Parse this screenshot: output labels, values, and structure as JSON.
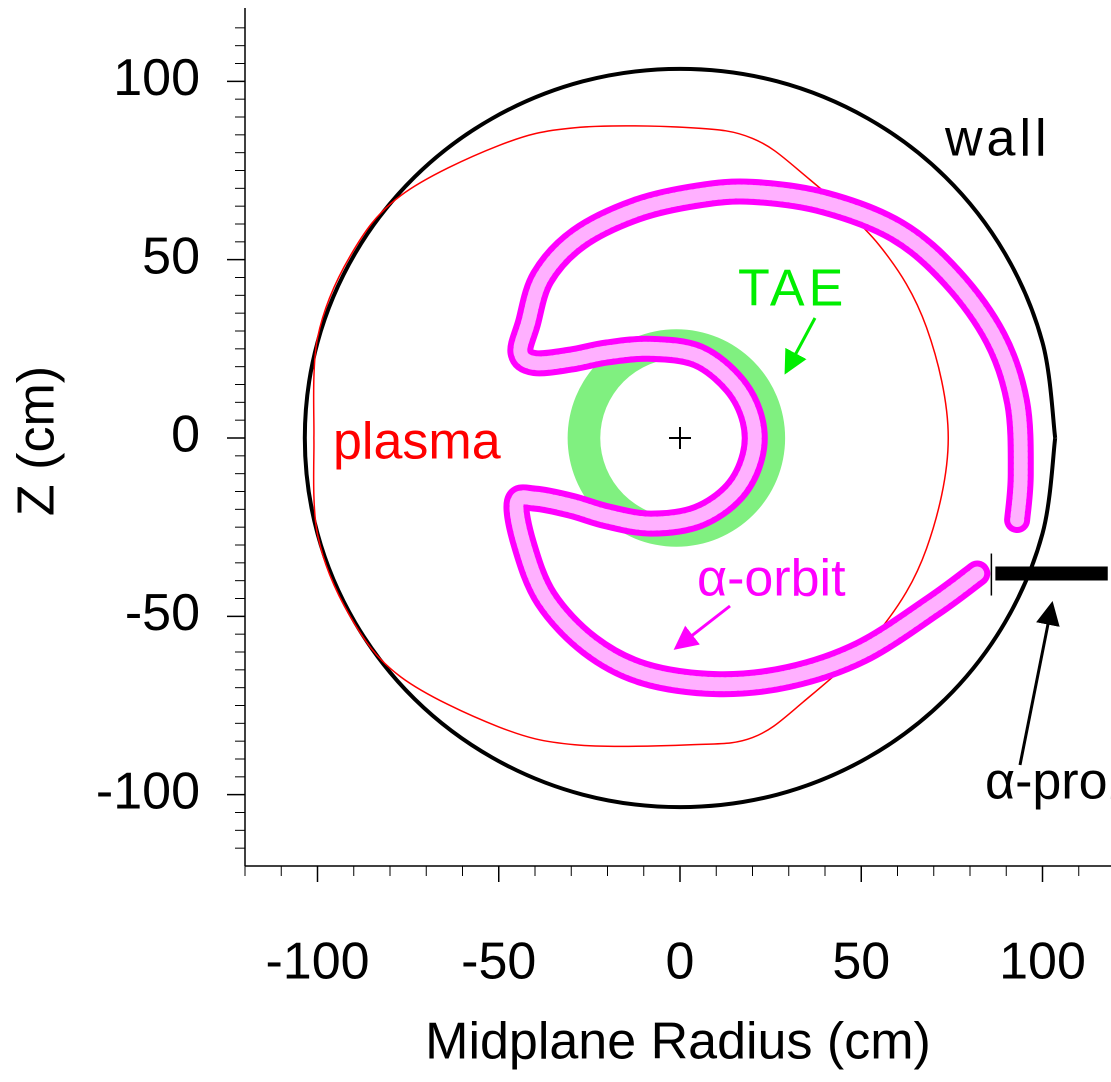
{
  "chart_data": {
    "type": "line",
    "xlabel": "Midplane Radius (cm)",
    "ylabel": "Z (cm)",
    "xlim": [
      -120,
      120
    ],
    "ylim": [
      -120,
      120
    ],
    "xticks": [
      -100,
      -50,
      0,
      50,
      100
    ],
    "yticks": [
      -100,
      -50,
      0,
      50,
      100
    ],
    "xminorticks": [
      -120,
      -110,
      -90,
      -80,
      -70,
      -60,
      -40,
      -30,
      -20,
      -10,
      10,
      20,
      30,
      40,
      60,
      70,
      80,
      90,
      110
    ],
    "yminorticks": [
      -115,
      -110,
      -105,
      -95,
      -90,
      -85,
      -80,
      -75,
      -70,
      -65,
      -60,
      -55,
      -45,
      -40,
      -35,
      -30,
      -25,
      -20,
      -15,
      -10,
      -5,
      5,
      10,
      15,
      20,
      25,
      30,
      35,
      40,
      45,
      55,
      60,
      65,
      70,
      75,
      80,
      85,
      90,
      95,
      105,
      110,
      115
    ],
    "series": [
      {
        "name": "wall",
        "color": "#000000",
        "x": [
          103.5,
          100,
          89.6,
          73.2,
          51.8,
          26.8,
          0,
          -26.8,
          -51.8,
          -73.2,
          -89.6,
          -100,
          -103.5,
          -100,
          -89.6,
          -73.2,
          -51.8,
          -26.8,
          0,
          26.8,
          51.8,
          73.2,
          89.6,
          100,
          103.5
        ],
        "y": [
          0,
          26.8,
          51.8,
          73.2,
          89.6,
          100,
          103.5,
          100,
          89.6,
          73.2,
          51.8,
          26.8,
          0,
          -26.8,
          -51.8,
          -73.2,
          -89.6,
          -100,
          -103.5,
          -100,
          -89.6,
          -73.2,
          -51.8,
          -26.8,
          0
        ]
      },
      {
        "name": "plasma",
        "color": "#ff0000",
        "x": [
          -101,
          -100,
          -91,
          -77,
          -50,
          -29,
          3,
          20,
          34,
          55,
          68,
          74,
          68,
          55,
          34,
          20,
          3,
          -29,
          -50,
          -77,
          -91,
          -100,
          -101
        ],
        "y": [
          0,
          28,
          51,
          68,
          82,
          87,
          87,
          84,
          74,
          54,
          31,
          0,
          -31,
          -54,
          -74,
          -84,
          -86,
          -86,
          -81,
          -67,
          -50,
          -27,
          0
        ]
      },
      {
        "name": "α-orbit",
        "color": "#ff00ff",
        "x": [
          82,
          70,
          50,
          30,
          10,
          -10,
          -25,
          -37,
          -43,
          -45,
          -40,
          -30,
          -20,
          -8,
          5,
          15,
          20,
          20,
          15,
          5,
          -8,
          -20,
          -30,
          -40,
          -44,
          -42,
          -38,
          -28,
          -12,
          5,
          20,
          40,
          60,
          75,
          87,
          93,
          94,
          93
        ],
        "y": [
          -38,
          -47,
          -60,
          -67,
          -69,
          -66,
          -58,
          -45,
          -30,
          -18,
          -17,
          -19,
          -22,
          -24,
          -22,
          -15,
          -5,
          5,
          15,
          23,
          25,
          24,
          22,
          21,
          24,
          32,
          45,
          56,
          64,
          68,
          69,
          66,
          58,
          45,
          28,
          10,
          -10,
          -23
        ]
      },
      {
        "name": "α-probe",
        "color": "#000000",
        "x": [
          87,
          118
        ],
        "y": [
          -38,
          -38
        ]
      }
    ],
    "tae": {
      "color": "#80f080",
      "outer": {
        "x": -1,
        "y": 0,
        "r": 30
      },
      "inner": {
        "x": 0,
        "y": 0,
        "r": 22
      }
    },
    "magnetic_axis": {
      "x": 0,
      "y": 0
    },
    "annotations": [
      "wall",
      "TAE",
      "plasma",
      "α-orbit",
      "α-probe"
    ]
  }
}
